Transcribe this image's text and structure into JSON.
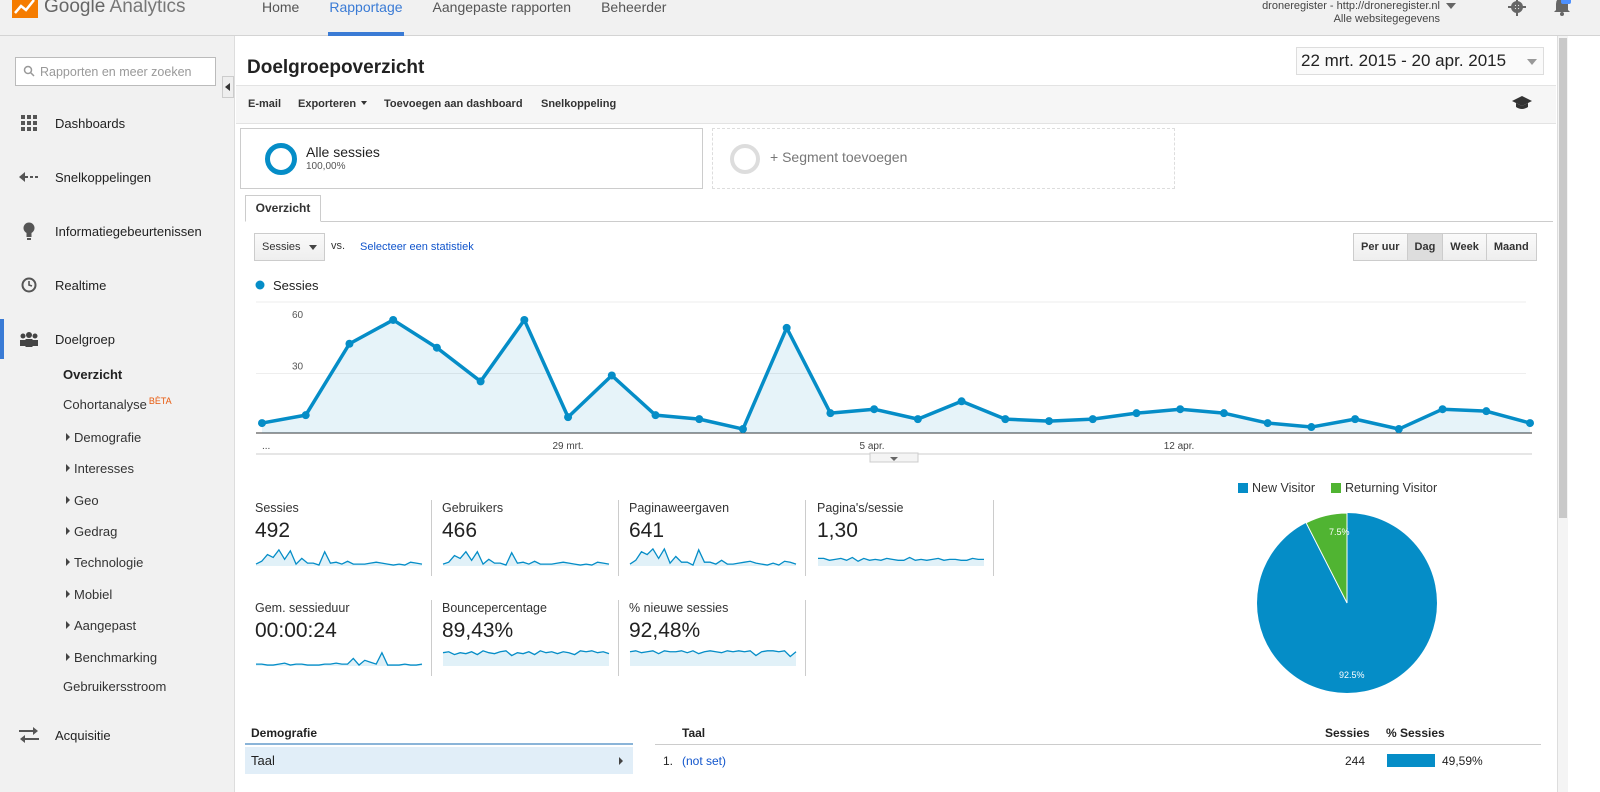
{
  "app": {
    "name_google": "Google",
    "name_product": "Analytics"
  },
  "nav": [
    {
      "label": "Home",
      "active": false
    },
    {
      "label": "Rapportage",
      "active": true
    },
    {
      "label": "Aangepaste rapporten",
      "active": false
    },
    {
      "label": "Beheerder",
      "active": false
    }
  ],
  "account": {
    "line1": "droneregister - http://droneregister.nl",
    "line2": "Alle websitegegevens"
  },
  "colors": {
    "accent": "#3a7bd5",
    "series": "#058dc7",
    "returning": "#50b432"
  },
  "sidebar": {
    "search_placeholder": "Rapporten en meer zoeken",
    "main": [
      {
        "label": "Dashboards",
        "icon": "grid-icon"
      },
      {
        "label": "Snelkoppelingen",
        "icon": "shortcut-arrow-icon"
      },
      {
        "label": "Informatiegebeurtenissen",
        "icon": "lightbulb-icon"
      },
      {
        "label": "Realtime",
        "icon": "clock-icon"
      },
      {
        "label": "Doelgroep",
        "icon": "people-icon",
        "active": true
      }
    ],
    "sub": [
      {
        "label": "Overzicht",
        "bold": true
      },
      {
        "label": "Cohortanalyse",
        "badge": "BÈTA"
      },
      {
        "label": "Demografie",
        "expandable": true
      },
      {
        "label": "Interesses",
        "expandable": true
      },
      {
        "label": "Geo",
        "expandable": true
      },
      {
        "label": "Gedrag",
        "expandable": true
      },
      {
        "label": "Technologie",
        "expandable": true
      },
      {
        "label": "Mobiel",
        "expandable": true
      },
      {
        "label": "Aangepast",
        "expandable": true
      },
      {
        "label": "Benchmarking",
        "expandable": true
      },
      {
        "label": "Gebruikersstroom"
      }
    ],
    "acquisitie": {
      "label": "Acquisitie",
      "icon": "acquisition-arrows-icon"
    }
  },
  "page": {
    "title": "Doelgroepoverzicht",
    "date_range": "22 mrt. 2015 - 20 apr. 2015"
  },
  "toolbar": {
    "email": "E-mail",
    "export": "Exporteren",
    "add_dashboard": "Toevoegen aan dashboard",
    "shortcut": "Snelkoppeling"
  },
  "segments": {
    "active": {
      "name": "Alle sessies",
      "pct": "100,00%"
    },
    "add": "+ Segment toevoegen"
  },
  "tab": "Overzicht",
  "controls": {
    "metric": "Sessies",
    "vs": "vs.",
    "select_stat": "Selecteer een statistiek",
    "periods": [
      {
        "label": "Per uur",
        "on": false
      },
      {
        "label": "Dag",
        "on": true
      },
      {
        "label": "Week",
        "on": false
      },
      {
        "label": "Maand",
        "on": false
      }
    ]
  },
  "chart_data": {
    "type": "line",
    "legend": [
      "Sessies"
    ],
    "yticks": [
      "60",
      "30"
    ],
    "ylim": [
      0,
      60
    ],
    "xlabels": [
      "...",
      "29 mrt.",
      "5 apr.",
      "12 apr."
    ],
    "series": [
      {
        "name": "Sessies",
        "values": [
          5,
          9,
          45,
          57,
          43,
          26,
          57,
          8,
          29,
          9,
          7,
          2,
          53,
          10,
          12,
          7,
          16,
          7,
          6,
          7,
          10,
          12,
          10,
          5,
          3,
          7,
          2,
          12,
          11,
          5
        ]
      }
    ]
  },
  "kpis": [
    {
      "label": "Sessies",
      "value": "492",
      "spark": [
        2,
        5,
        12,
        9,
        17,
        7,
        16,
        2,
        8,
        3,
        3,
        1,
        15,
        3,
        4,
        2,
        5,
        2,
        2,
        2,
        3,
        4,
        3,
        2,
        1,
        2,
        1,
        4,
        3,
        2
      ]
    },
    {
      "label": "Gebruikers",
      "value": "466",
      "spark": [
        2,
        4,
        11,
        8,
        15,
        6,
        15,
        2,
        7,
        3,
        3,
        1,
        14,
        3,
        4,
        2,
        5,
        2,
        2,
        2,
        3,
        4,
        3,
        2,
        1,
        2,
        1,
        4,
        3,
        2
      ]
    },
    {
      "label": "Paginaweergaven",
      "value": "641",
      "spark": [
        2,
        6,
        15,
        12,
        18,
        8,
        18,
        3,
        10,
        4,
        4,
        1,
        17,
        4,
        4,
        2,
        6,
        2,
        2,
        3,
        4,
        5,
        3,
        2,
        1,
        3,
        1,
        5,
        4,
        2
      ]
    },
    {
      "label": "Pagina's/sessie",
      "value": "1,30",
      "spark": [
        8,
        8,
        6,
        7,
        8,
        6,
        9,
        5,
        8,
        6,
        7,
        6,
        8,
        7,
        6,
        6,
        9,
        6,
        7,
        6,
        7,
        8,
        6,
        7,
        7,
        6,
        6,
        8,
        7,
        7
      ]
    },
    {
      "label": "Gem. sessieduur",
      "value": "00:00:24",
      "spark": [
        2,
        2,
        1,
        1,
        2,
        3,
        1,
        2,
        2,
        1,
        1,
        1,
        2,
        2,
        3,
        2,
        2,
        8,
        1,
        6,
        4,
        2,
        14,
        1,
        1,
        1,
        2,
        1,
        1,
        2
      ]
    },
    {
      "label": "Bouncepercentage",
      "value": "89,43%",
      "spark": [
        14,
        15,
        12,
        14,
        13,
        15,
        12,
        16,
        14,
        13,
        15,
        16,
        11,
        14,
        13,
        15,
        12,
        16,
        14,
        15,
        13,
        15,
        14,
        12,
        16,
        15,
        16,
        14,
        15,
        13
      ]
    },
    {
      "label": "% nieuwe sessies",
      "value": "92,48%",
      "spark": [
        15,
        16,
        14,
        15,
        16,
        13,
        16,
        15,
        15,
        16,
        14,
        16,
        13,
        15,
        16,
        15,
        14,
        16,
        15,
        16,
        15,
        16,
        11,
        15,
        16,
        16,
        15,
        16,
        10,
        15
      ]
    }
  ],
  "pie": {
    "legend": [
      {
        "label": "New Visitor",
        "color": "#058dc7"
      },
      {
        "label": "Returning Visitor",
        "color": "#50b432"
      }
    ],
    "new_pct": 92.5,
    "returning_pct": 7.5,
    "new_label": "92.5%",
    "returning_label": "7.5%"
  },
  "demografie": {
    "header": "Demografie",
    "row": "Taal"
  },
  "taal_table": {
    "col_taal": "Taal",
    "col_sessies": "Sessies",
    "col_pct": "% Sessies",
    "rows": [
      {
        "num": "1.",
        "taal": "(not set)",
        "sessies": "244",
        "pct": "49,59%",
        "share": 0.4959
      }
    ]
  }
}
